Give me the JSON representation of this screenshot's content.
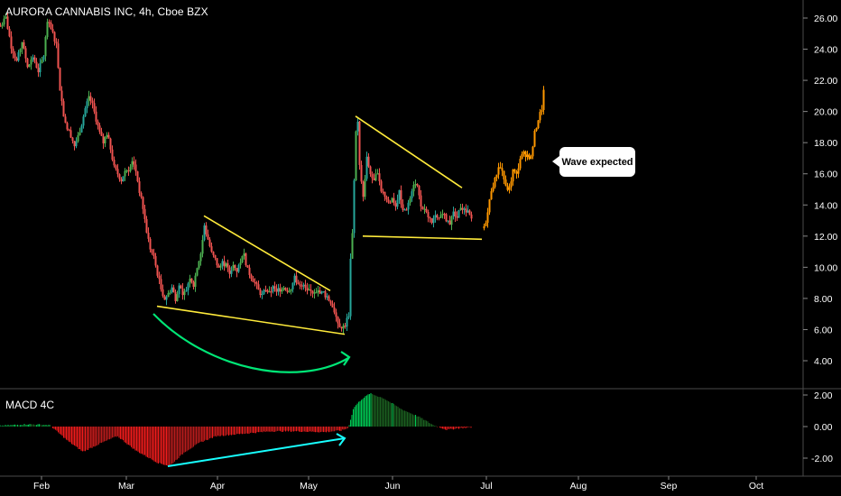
{
  "header": {
    "title": "AURORA CANNABIS INC, 4h, Cboe BZX"
  },
  "callout": {
    "text": "Wave expected"
  },
  "chart_data": [
    {
      "type": "candlestick",
      "title": "AURORA CANNABIS INC, 4h, Cboe BZX",
      "x_ticks": [
        "Feb",
        "Mar",
        "Apr",
        "May",
        "Jun",
        "Jul",
        "Aug",
        "Sep",
        "Oct"
      ],
      "y_ticks": [
        "4.00",
        "6.00",
        "8.00",
        "10.00",
        "12.00",
        "14.00",
        "16.00",
        "18.00",
        "20.00",
        "22.00",
        "24.00",
        "26.00"
      ],
      "ylim": [
        2.8,
        27
      ],
      "grid": false,
      "colors": {
        "up": "#26a69a",
        "up_bright": "#4caf50",
        "down": "#ef5350",
        "projection": "#ff9800",
        "trendline": "#ffeb3b",
        "arc": "#00e676",
        "macd_arrow": "#18ffff"
      },
      "price_path": [
        [
          0,
          25.5
        ],
        [
          6,
          26.0
        ],
        [
          12,
          24.2
        ],
        [
          18,
          23.2
        ],
        [
          24,
          24.5
        ],
        [
          30,
          22.8
        ],
        [
          36,
          23.5
        ],
        [
          42,
          22.6
        ],
        [
          48,
          23.6
        ],
        [
          52,
          25.8
        ],
        [
          58,
          25.0
        ],
        [
          62,
          24.3
        ],
        [
          66,
          21.5
        ],
        [
          70,
          19.8
        ],
        [
          74,
          18.9
        ],
        [
          78,
          18.5
        ],
        [
          82,
          17.8
        ],
        [
          86,
          18.4
        ],
        [
          90,
          19.2
        ],
        [
          94,
          20.2
        ],
        [
          98,
          21.0
        ],
        [
          102,
          20.4
        ],
        [
          106,
          19.5
        ],
        [
          110,
          18.6
        ],
        [
          114,
          18.0
        ],
        [
          118,
          18.6
        ],
        [
          122,
          17.6
        ],
        [
          126,
          16.4
        ],
        [
          130,
          16.0
        ],
        [
          134,
          15.6
        ],
        [
          138,
          16.2
        ],
        [
          142,
          16.3
        ],
        [
          146,
          16.9
        ],
        [
          150,
          16.2
        ],
        [
          154,
          14.9
        ],
        [
          158,
          13.8
        ],
        [
          162,
          12.3
        ],
        [
          166,
          11.2
        ],
        [
          170,
          10.6
        ],
        [
          174,
          9.6
        ],
        [
          178,
          8.6
        ],
        [
          182,
          8.0
        ],
        [
          186,
          8.3
        ],
        [
          190,
          8.7
        ],
        [
          194,
          8.0
        ],
        [
          198,
          8.9
        ],
        [
          202,
          8.1
        ],
        [
          206,
          8.6
        ],
        [
          210,
          9.4
        ],
        [
          214,
          8.9
        ],
        [
          218,
          10.0
        ],
        [
          222,
          10.9
        ],
        [
          226,
          12.6
        ],
        [
          230,
          11.8
        ],
        [
          234,
          10.9
        ],
        [
          238,
          10.5
        ],
        [
          242,
          9.9
        ],
        [
          246,
          10.3
        ],
        [
          250,
          10.1
        ],
        [
          254,
          9.6
        ],
        [
          258,
          10.2
        ],
        [
          262,
          9.8
        ],
        [
          266,
          10.4
        ],
        [
          270,
          10.8
        ],
        [
          274,
          9.8
        ],
        [
          278,
          9.4
        ],
        [
          282,
          9.0
        ],
        [
          286,
          8.5
        ],
        [
          290,
          8.2
        ],
        [
          294,
          8.6
        ],
        [
          298,
          8.3
        ],
        [
          302,
          8.7
        ],
        [
          306,
          8.5
        ],
        [
          310,
          8.6
        ],
        [
          314,
          8.8
        ],
        [
          318,
          8.5
        ],
        [
          322,
          8.7
        ],
        [
          326,
          9.3
        ],
        [
          330,
          9.0
        ],
        [
          334,
          8.9
        ],
        [
          338,
          8.6
        ],
        [
          342,
          8.5
        ],
        [
          346,
          8.4
        ],
        [
          350,
          8.5
        ],
        [
          354,
          8.3
        ],
        [
          358,
          8.4
        ],
        [
          362,
          8.0
        ],
        [
          366,
          7.8
        ],
        [
          370,
          7.2
        ],
        [
          374,
          6.5
        ],
        [
          378,
          6.1
        ],
        [
          382,
          6.3
        ],
        [
          386,
          7.0
        ],
        [
          388,
          10.5
        ],
        [
          390,
          12.3
        ],
        [
          394,
          18.8
        ],
        [
          396,
          19.3
        ],
        [
          398,
          16.5
        ],
        [
          402,
          14.5
        ],
        [
          406,
          17.0
        ],
        [
          410,
          16.0
        ],
        [
          414,
          15.5
        ],
        [
          418,
          16.2
        ],
        [
          422,
          15.0
        ],
        [
          426,
          14.6
        ],
        [
          430,
          14.1
        ],
        [
          434,
          14.4
        ],
        [
          438,
          14.0
        ],
        [
          442,
          14.8
        ],
        [
          446,
          13.6
        ],
        [
          450,
          13.8
        ],
        [
          454,
          14.6
        ],
        [
          458,
          15.4
        ],
        [
          462,
          15.2
        ],
        [
          466,
          13.9
        ],
        [
          470,
          13.6
        ],
        [
          474,
          13.3
        ],
        [
          478,
          12.9
        ],
        [
          482,
          13.2
        ],
        [
          486,
          13.0
        ],
        [
          490,
          13.4
        ],
        [
          494,
          13.1
        ],
        [
          498,
          12.9
        ],
        [
          502,
          13.5
        ],
        [
          506,
          13.2
        ],
        [
          510,
          13.9
        ],
        [
          514,
          13.7
        ],
        [
          518,
          13.5
        ],
        [
          522,
          13.1
        ]
      ],
      "projection_path": [
        [
          536,
          12.5
        ],
        [
          540,
          13.5
        ],
        [
          544,
          15.0
        ],
        [
          548,
          15.6
        ],
        [
          552,
          16.5
        ],
        [
          556,
          16.2
        ],
        [
          560,
          15.1
        ],
        [
          564,
          15.0
        ],
        [
          568,
          16.2
        ],
        [
          572,
          15.9
        ],
        [
          576,
          17.0
        ],
        [
          580,
          17.3
        ],
        [
          584,
          17.2
        ],
        [
          588,
          17.0
        ],
        [
          592,
          18.6
        ],
        [
          596,
          19.5
        ],
        [
          600,
          20.2
        ],
        [
          602,
          21.3
        ]
      ],
      "trendlines": [
        {
          "from": [
            226,
            13.3
          ],
          "to": [
            366,
            8.5
          ]
        },
        {
          "from": [
            174,
            7.5
          ],
          "to": [
            382,
            5.7
          ]
        },
        {
          "from": [
            394,
            19.7
          ],
          "to": [
            512,
            15.1
          ]
        },
        {
          "from": [
            402,
            12.0
          ],
          "to": [
            534,
            11.8
          ]
        }
      ]
    },
    {
      "type": "bar",
      "title": "MACD 4C",
      "y_ticks": [
        "2.00",
        "0.00",
        "-2.00"
      ],
      "ylim": [
        -2.8,
        2.4
      ],
      "profile": [
        [
          0,
          0.05
        ],
        [
          30,
          0.15
        ],
        [
          55,
          0.1
        ],
        [
          75,
          -0.9
        ],
        [
          92,
          -1.6
        ],
        [
          110,
          -1.1
        ],
        [
          130,
          -0.6
        ],
        [
          150,
          -1.5
        ],
        [
          175,
          -2.3
        ],
        [
          188,
          -2.5
        ],
        [
          205,
          -1.6
        ],
        [
          222,
          -1.0
        ],
        [
          240,
          -0.6
        ],
        [
          270,
          -0.45
        ],
        [
          300,
          -0.3
        ],
        [
          330,
          -0.3
        ],
        [
          360,
          -0.35
        ],
        [
          378,
          -0.25
        ],
        [
          386,
          -0.1
        ],
        [
          392,
          1.2
        ],
        [
          400,
          1.7
        ],
        [
          410,
          2.1
        ],
        [
          425,
          1.8
        ],
        [
          445,
          1.1
        ],
        [
          465,
          0.6
        ],
        [
          480,
          0.1
        ],
        [
          495,
          -0.2
        ],
        [
          510,
          -0.1
        ],
        [
          522,
          -0.05
        ]
      ]
    }
  ]
}
